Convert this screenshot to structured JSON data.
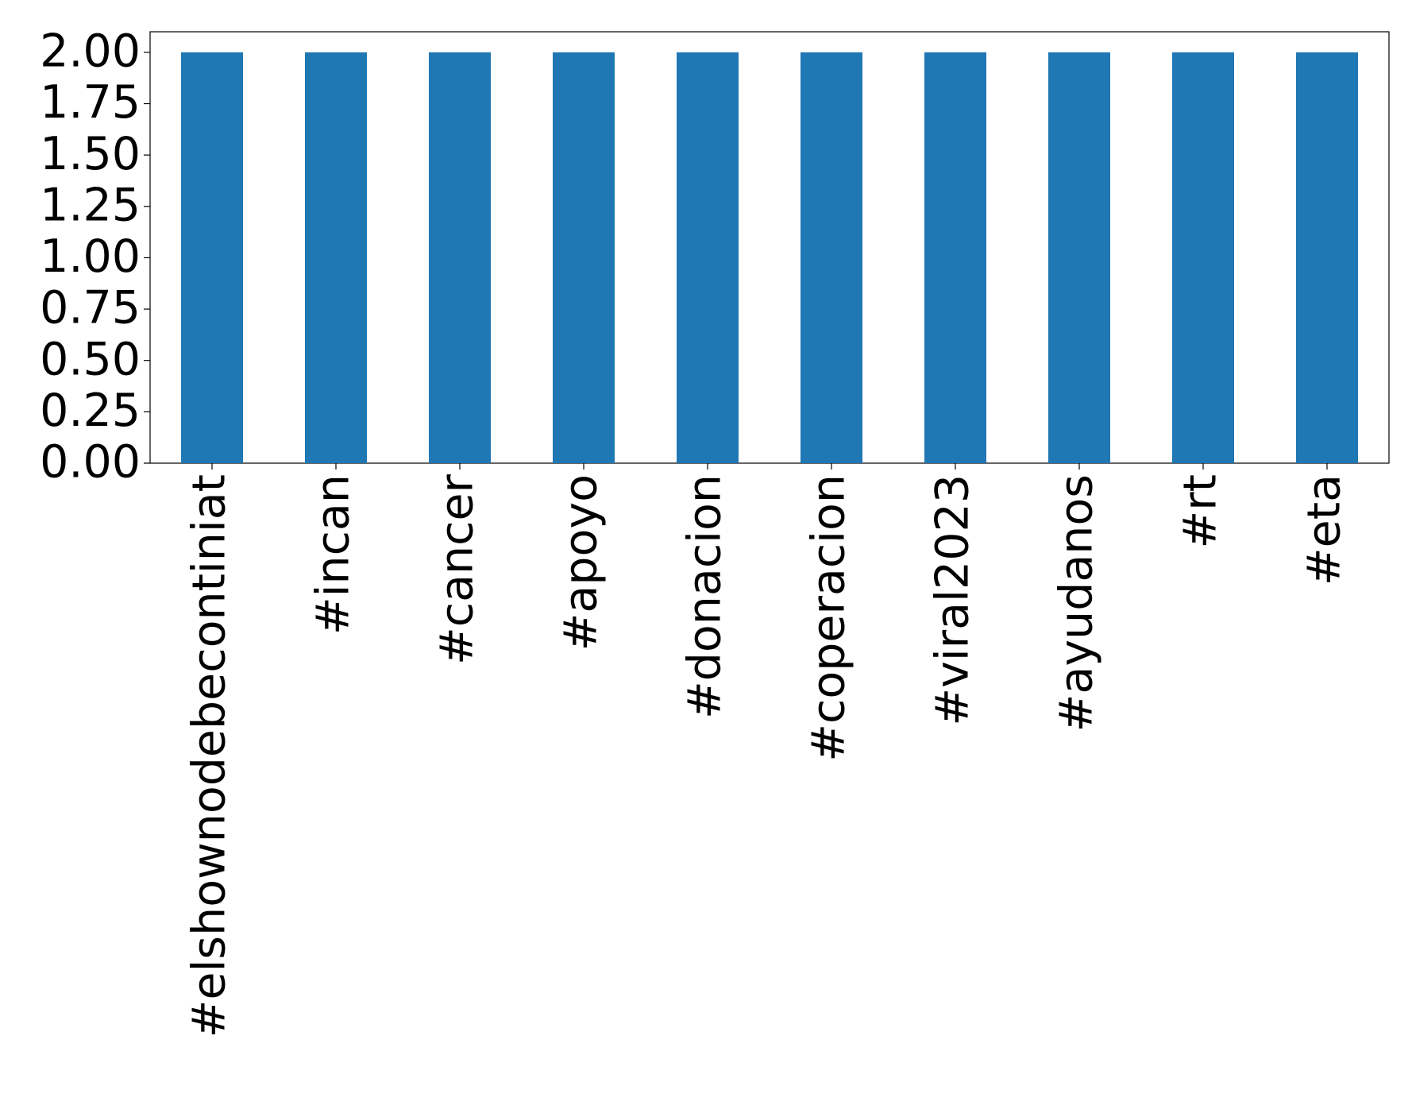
{
  "chart_data": {
    "type": "bar",
    "categories": [
      "#elshownodebecontiniat",
      "#incan",
      "#cancer",
      "#apoyo",
      "#donacion",
      "#coperacion",
      "#viral2023",
      "#ayudanos",
      "#rt",
      "#eta"
    ],
    "values": [
      2,
      2,
      2,
      2,
      2,
      2,
      2,
      2,
      2,
      2
    ],
    "color": "#1f77b4",
    "ylim": [
      0,
      2.1
    ],
    "yticks": [
      {
        "value": 0,
        "label": "0.00"
      },
      {
        "value": 0.25,
        "label": "0.25"
      },
      {
        "value": 0.5,
        "label": "0.50"
      },
      {
        "value": 0.75,
        "label": "0.75"
      },
      {
        "value": 1,
        "label": "1.00"
      },
      {
        "value": 1.25,
        "label": "1.25"
      },
      {
        "value": 1.5,
        "label": "1.50"
      },
      {
        "value": 1.75,
        "label": "1.75"
      },
      {
        "value": 2,
        "label": "2.00"
      }
    ],
    "grid": false
  }
}
